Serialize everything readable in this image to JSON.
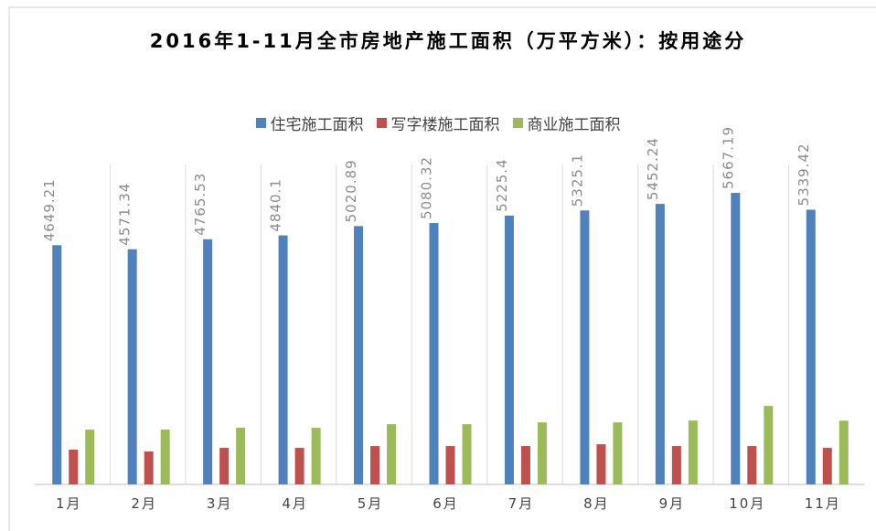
{
  "chart_data": {
    "type": "bar",
    "title": "2016年1-11月全市房地产施工面积（万平方米）：按用途分",
    "categories": [
      "1月",
      "2月",
      "3月",
      "4月",
      "5月",
      "6月",
      "7月",
      "8月",
      "9月",
      "10月",
      "11月"
    ],
    "series": [
      {
        "name": "住宅施工面积",
        "color": "#4f81bd",
        "values": [
          4649.21,
          4571.34,
          4765.53,
          4840.1,
          5020.89,
          5080.32,
          5225.4,
          5325.1,
          5452.24,
          5667.19,
          5339.42
        ],
        "value_labels": [
          "4649.21",
          "4571.34",
          "4765.53",
          "4840.1",
          "5020.89",
          "5080.32",
          "5225.4",
          "5325.1",
          "5452.24",
          "5667.19",
          "5339.42"
        ]
      },
      {
        "name": "写字楼施工面积",
        "color": "#c0504d",
        "values": [
          675,
          640,
          710,
          710,
          745,
          745,
          745,
          780,
          745,
          745,
          710
        ]
      },
      {
        "name": "商业施工面积",
        "color": "#9bbb59",
        "values": [
          1065,
          1065,
          1100,
          1100,
          1170,
          1170,
          1205,
          1205,
          1240,
          1525,
          1240
        ]
      }
    ],
    "legend": "top"
  }
}
